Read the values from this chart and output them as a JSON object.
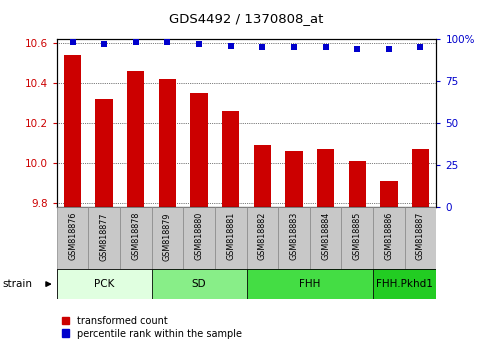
{
  "title": "GDS4492 / 1370808_at",
  "samples": [
    "GSM818876",
    "GSM818877",
    "GSM818878",
    "GSM818879",
    "GSM818880",
    "GSM818881",
    "GSM818882",
    "GSM818883",
    "GSM818884",
    "GSM818885",
    "GSM818886",
    "GSM818887"
  ],
  "bar_values": [
    10.54,
    10.32,
    10.46,
    10.42,
    10.35,
    10.26,
    10.09,
    10.06,
    10.07,
    10.01,
    9.91,
    10.07
  ],
  "percentile_values": [
    98,
    97,
    98,
    98,
    97,
    96,
    95,
    95,
    95,
    94,
    94,
    95
  ],
  "bar_color": "#cc0000",
  "percentile_color": "#0000cc",
  "ylim_left": [
    9.78,
    10.62
  ],
  "ylim_right": [
    0,
    100
  ],
  "yticks_left": [
    9.8,
    10.0,
    10.2,
    10.4,
    10.6
  ],
  "yticks_right": [
    0,
    25,
    50,
    75,
    100
  ],
  "groups": [
    {
      "label": "PCK",
      "start": 0,
      "end": 2,
      "color": "#e0ffe0"
    },
    {
      "label": "SD",
      "start": 3,
      "end": 5,
      "color": "#88ee88"
    },
    {
      "label": "FHH",
      "start": 6,
      "end": 9,
      "color": "#44dd44"
    },
    {
      "label": "FHH.Pkhd1",
      "start": 10,
      "end": 11,
      "color": "#22cc22"
    }
  ],
  "xlabel_strain": "strain",
  "legend_bar_label": "transformed count",
  "legend_pct_label": "percentile rank within the sample",
  "label_bg_color": "#c8c8c8",
  "label_edge_color": "#888888"
}
